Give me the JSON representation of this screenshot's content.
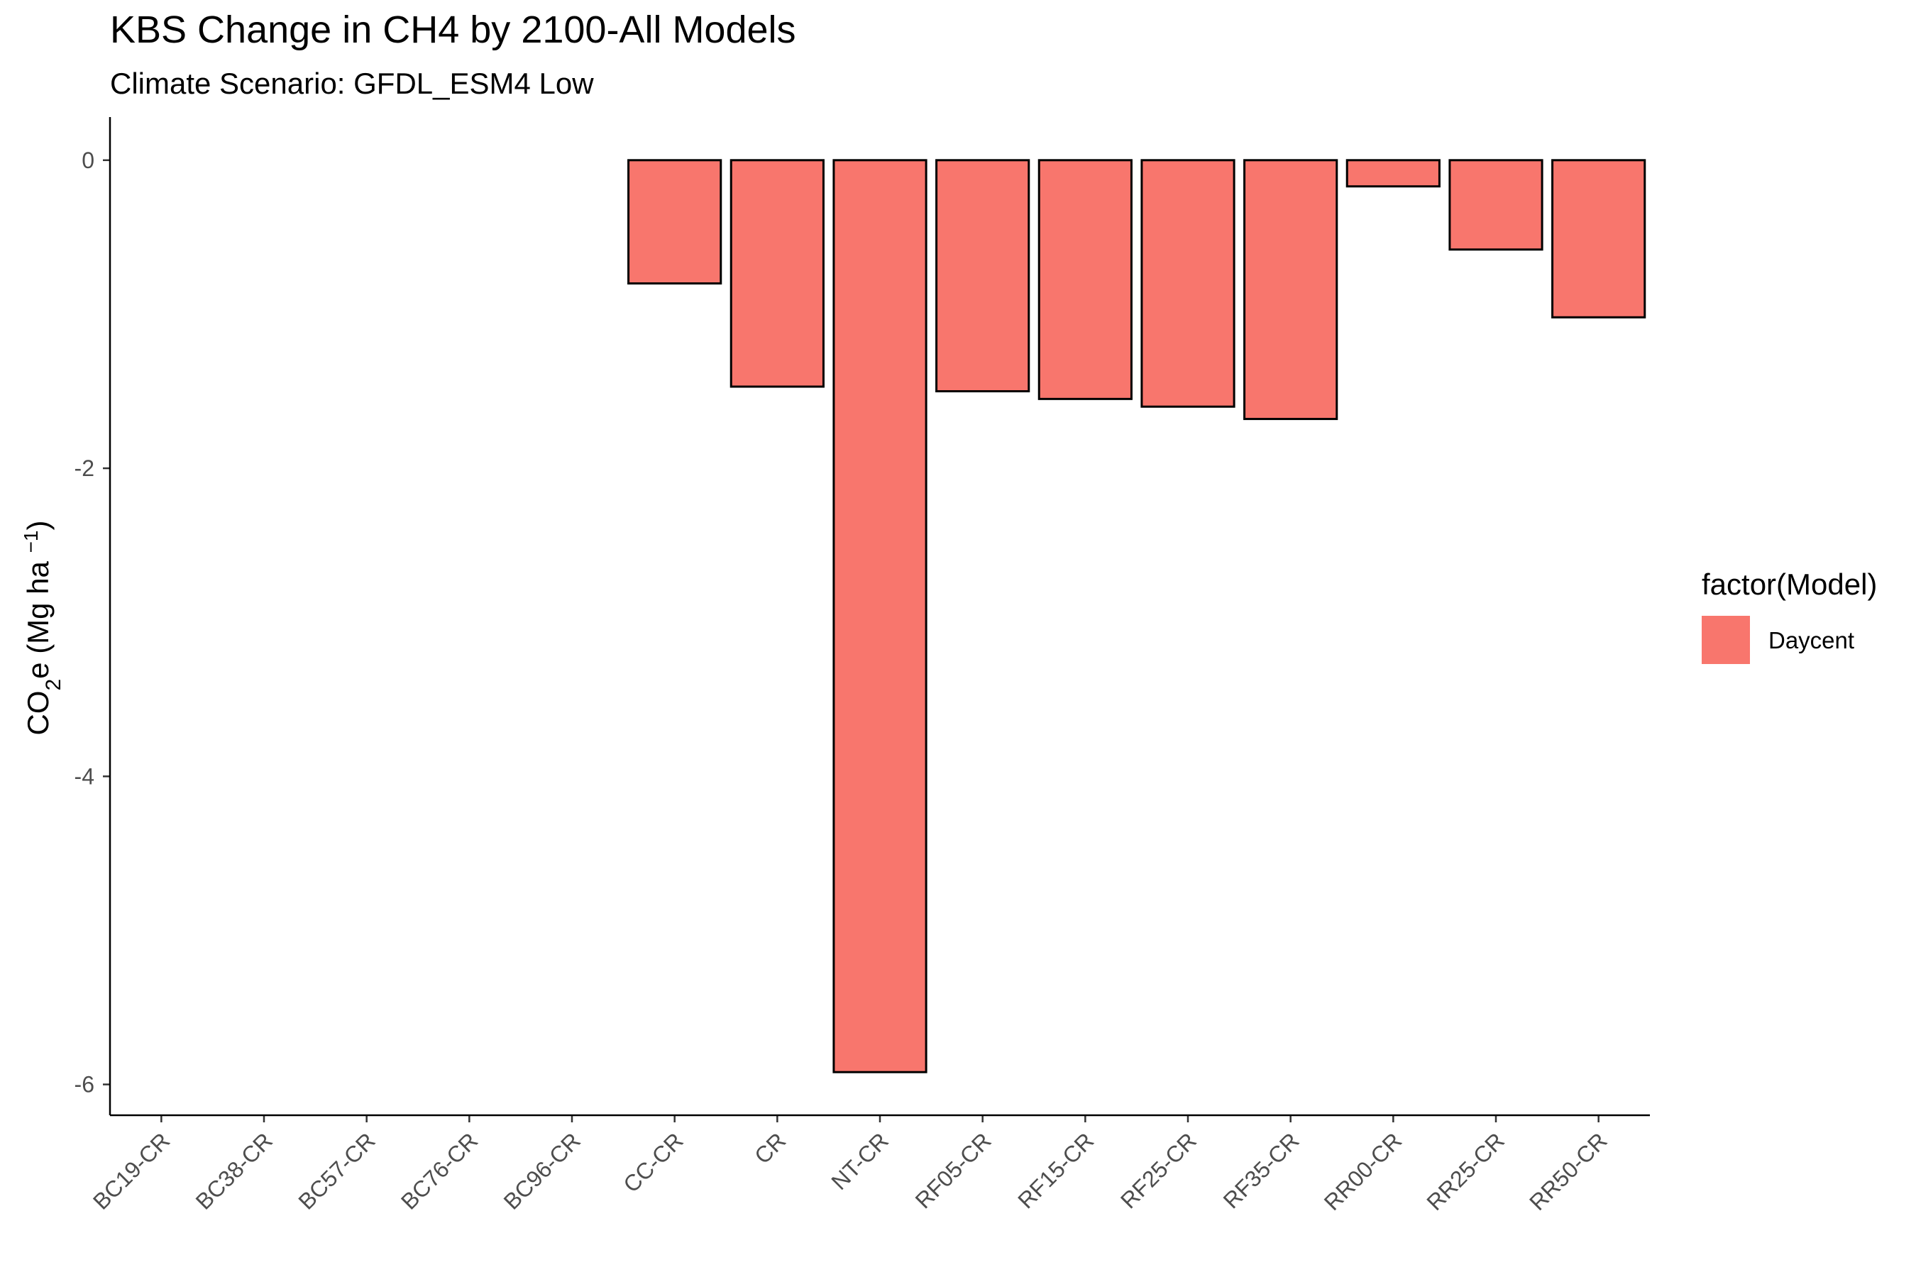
{
  "chart_data": {
    "type": "bar",
    "title": "KBS Change in CH4 by 2100-All Models",
    "subtitle": "Climate Scenario: GFDL_ESM4 Low",
    "ylabel": {
      "prefix": "CO",
      "sub": "2",
      "mid": "e (Mg ha ",
      "sup": "−1",
      "suffix": ")"
    },
    "xlabel": "",
    "categories": [
      "BC19-CR",
      "BC38-CR",
      "BC57-CR",
      "BC76-CR",
      "BC96-CR",
      "CC-CR",
      "CR",
      "NT-CR",
      "RF05-CR",
      "RF15-CR",
      "RF25-CR",
      "RF35-CR",
      "RR00-CR",
      "RR25-CR",
      "RR50-CR"
    ],
    "series": [
      {
        "name": "Daycent",
        "color": "#F8766D",
        "values": [
          null,
          null,
          null,
          null,
          null,
          -0.8,
          -1.47,
          -5.92,
          -1.5,
          -1.55,
          -1.6,
          -1.68,
          -0.17,
          -0.58,
          -1.02
        ]
      }
    ],
    "ylim": [
      -6.2,
      0.28
    ],
    "yticks": [
      0,
      -2,
      -4,
      -6
    ],
    "ytick_labels": [
      "0",
      "-2",
      "-4",
      "-6"
    ],
    "grid": false,
    "legend": {
      "title": "factor(Model)",
      "position": "right",
      "entries": [
        {
          "label": "Daycent",
          "color": "#F8766D"
        }
      ]
    }
  }
}
